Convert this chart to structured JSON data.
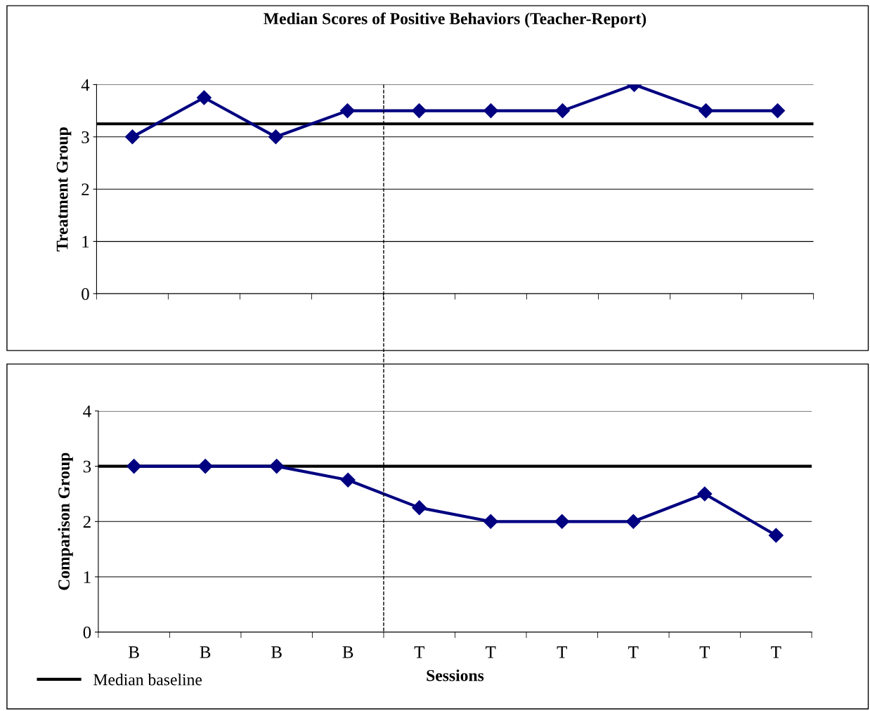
{
  "chart_data": [
    {
      "type": "line",
      "title": "Median Scores of Positive Behaviors (Teacher-Report)",
      "ylabel": "Treatment Group",
      "categories": [
        null,
        null,
        null,
        null,
        null,
        null,
        null,
        null,
        null,
        null
      ],
      "series": [
        {
          "color": "#000080",
          "values": [
            3,
            3.75,
            3,
            3.5,
            3.5,
            3.5,
            3.5,
            4,
            3.5,
            3.5
          ]
        }
      ],
      "ylim": [
        0,
        4
      ],
      "yticks": [
        0,
        1,
        2,
        3,
        4
      ],
      "grid": "y",
      "marker": "diamond",
      "line_style": "solid",
      "tick_labels": "y",
      "ref_lines": [
        {
          "axis": "y",
          "value": 3.25,
          "color": "#000000",
          "line_style": "solid"
        }
      ]
    },
    {
      "type": "line",
      "xlabel": "Sessions",
      "ylabel": "Comparison Group",
      "categories": [
        "B",
        "B",
        "B",
        "B",
        "T",
        "T",
        "T",
        "T",
        "T",
        "T"
      ],
      "series": [
        {
          "color": "#000080",
          "values": [
            3,
            3,
            3,
            2.75,
            2.25,
            2,
            2,
            2,
            2.5,
            1.75
          ]
        }
      ],
      "ylim": [
        0,
        4
      ],
      "yticks": [
        0,
        1,
        2,
        3,
        4
      ],
      "grid": "y",
      "marker": "diamond",
      "line_style": "solid",
      "legend": "bottom left",
      "ref_lines": [
        {
          "axis": "y",
          "value": 3,
          "label": "Median baseline",
          "color": "#000000",
          "line_style": "solid"
        }
      ]
    }
  ]
}
